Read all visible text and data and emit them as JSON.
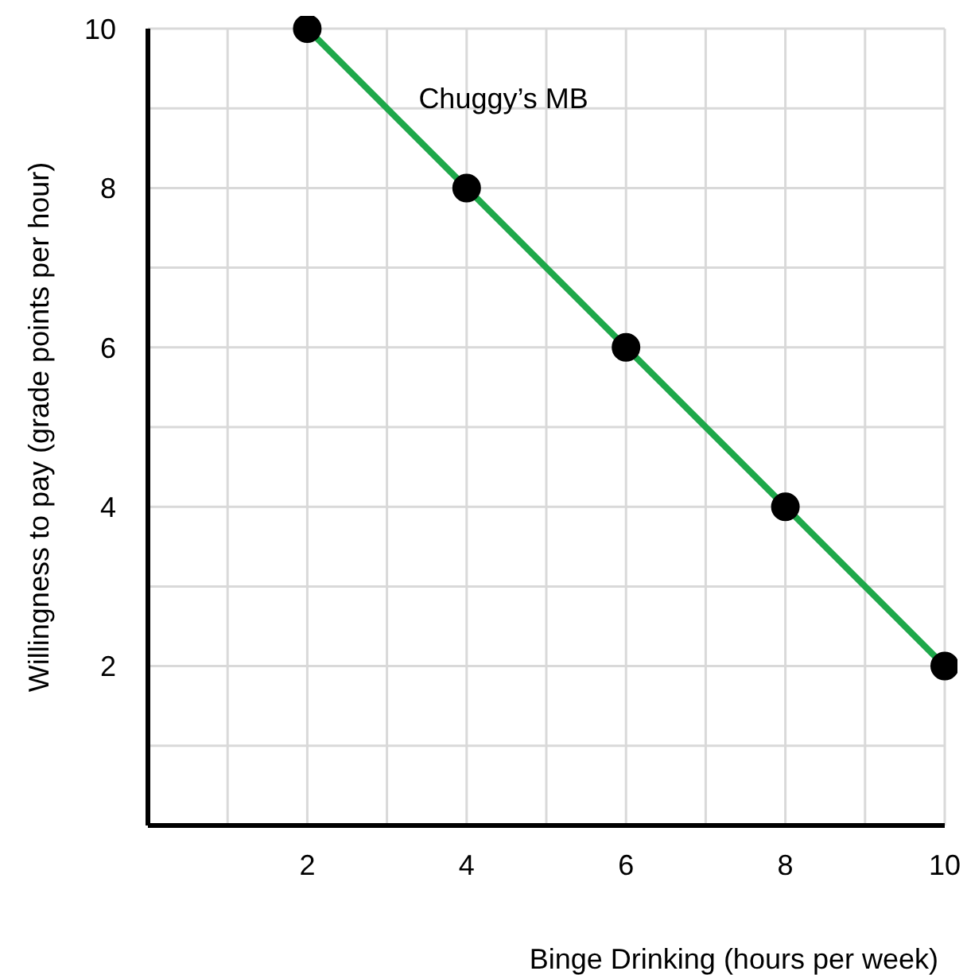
{
  "chart_data": {
    "type": "line",
    "xlabel": "Binge Drinking (hours per week)",
    "ylabel": "Willingness to pay (grade points per hour)",
    "x": [
      2,
      4,
      6,
      8,
      10
    ],
    "series": [
      {
        "name": "Chuggy’s MB",
        "color": "#1ea84a",
        "values": [
          10,
          8,
          6,
          4,
          2
        ]
      }
    ],
    "xlim": [
      0,
      10
    ],
    "xticks": [
      {
        "value": 1,
        "label": null
      },
      2,
      {
        "value": 3,
        "label": null
      },
      4,
      {
        "value": 5,
        "label": null
      },
      6,
      {
        "value": 7,
        "label": null
      },
      8,
      {
        "value": 9,
        "label": null
      },
      10
    ],
    "ylim": [
      0,
      10
    ],
    "yticks": [
      {
        "value": 1,
        "label": null
      },
      2,
      {
        "value": 3,
        "label": null
      },
      4,
      {
        "value": 5,
        "label": null
      },
      6,
      {
        "value": 7,
        "label": null
      },
      8,
      {
        "value": 9,
        "label": null
      },
      10
    ],
    "grid": true,
    "legend": false,
    "marker": "circle",
    "line_style": "solid"
  }
}
